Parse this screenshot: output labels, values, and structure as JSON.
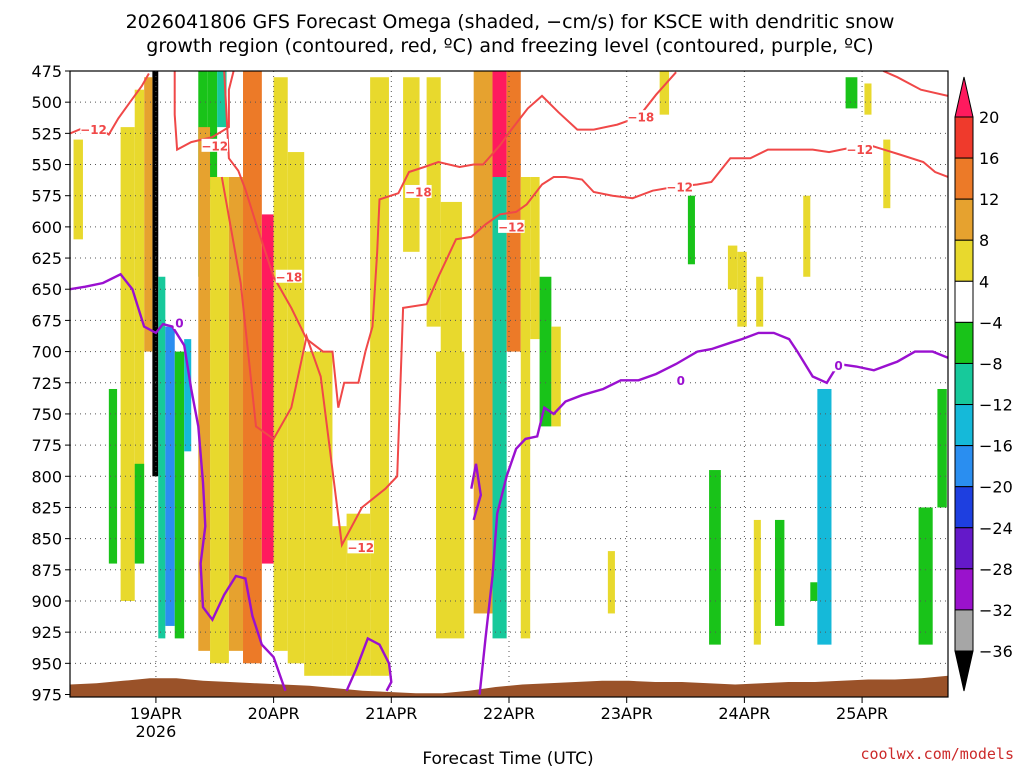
{
  "chart_data": {
    "type": "heatmap",
    "title_lines": [
      "2026041806 GFS Forecast Omega (shaded, −cm/s) for KSCE with dendritic snow",
      "growth region (contoured, red, ºC) and freezing level (contoured, purple, ºC)"
    ],
    "xlabel": "Forecast Time (UTC)",
    "ylabel": "",
    "credit": "coolwx.com/models",
    "x_range_days": [
      -0.73,
      6.73
    ],
    "x_ticks": [
      {
        "day": 0,
        "label": "19APR",
        "sub": "2026"
      },
      {
        "day": 1,
        "label": "20APR",
        "sub": ""
      },
      {
        "day": 2,
        "label": "21APR",
        "sub": ""
      },
      {
        "day": 3,
        "label": "22APR",
        "sub": ""
      },
      {
        "day": 4,
        "label": "23APR",
        "sub": ""
      },
      {
        "day": 5,
        "label": "24APR",
        "sub": ""
      },
      {
        "day": 6,
        "label": "25APR",
        "sub": ""
      }
    ],
    "y_range_hpa": [
      475,
      977
    ],
    "y_ticks": [
      475,
      500,
      525,
      550,
      575,
      600,
      625,
      650,
      675,
      700,
      725,
      750,
      775,
      800,
      825,
      850,
      875,
      900,
      925,
      950,
      975
    ],
    "colorbar": {
      "levels": [
        20,
        16,
        12,
        8,
        4,
        -4,
        -8,
        -12,
        -16,
        -20,
        -24,
        -28,
        -32,
        -36
      ],
      "labels": [
        "20",
        "16",
        "12",
        "8",
        "4",
        "−4",
        "−8",
        "−12",
        "−16",
        "−20",
        "−24",
        "−28",
        "−32",
        "−36"
      ],
      "colors": [
        "#ff1a5e",
        "#ef3a2c",
        "#ec7a28",
        "#e6a22f",
        "#e8d92d",
        "#ffffff",
        "#19c319",
        "#17c99b",
        "#15b9d9",
        "#2a8ef0",
        "#1e3fe0",
        "#6419c9",
        "#9a12cc",
        "#a6a6a6",
        "#000000"
      ]
    },
    "omega_cells": [
      {
        "t0": -0.03,
        "t1": 0.02,
        "p0": 475,
        "p1": 800,
        "v": -40
      },
      {
        "t0": -0.1,
        "t1": -0.03,
        "p0": 480,
        "p1": 700,
        "v": 8
      },
      {
        "t0": -0.18,
        "t1": -0.1,
        "p0": 490,
        "p1": 820,
        "v": 6
      },
      {
        "t0": -0.3,
        "t1": -0.18,
        "p0": 520,
        "p1": 900,
        "v": 5
      },
      {
        "t0": -0.7,
        "t1": -0.62,
        "p0": 530,
        "p1": 610,
        "v": 5
      },
      {
        "t0": -0.4,
        "t1": -0.33,
        "p0": 730,
        "p1": 870,
        "v": -5
      },
      {
        "t0": -0.18,
        "t1": -0.1,
        "p0": 790,
        "p1": 870,
        "v": -6
      },
      {
        "t0": 0.02,
        "t1": 0.08,
        "p0": 640,
        "p1": 930,
        "v": -10
      },
      {
        "t0": 0.08,
        "t1": 0.16,
        "p0": 680,
        "p1": 920,
        "v": -18
      },
      {
        "t0": 0.16,
        "t1": 0.24,
        "p0": 700,
        "p1": 930,
        "v": -8
      },
      {
        "t0": 0.24,
        "t1": 0.3,
        "p0": 690,
        "p1": 780,
        "v": -14
      },
      {
        "t0": 0.36,
        "t1": 0.44,
        "p0": 475,
        "p1": 640,
        "v": -6
      },
      {
        "t0": 0.44,
        "t1": 0.52,
        "p0": 475,
        "p1": 570,
        "v": -8
      },
      {
        "t0": 0.52,
        "t1": 0.6,
        "p0": 475,
        "p1": 520,
        "v": -12
      },
      {
        "t0": 0.36,
        "t1": 0.46,
        "p0": 520,
        "p1": 940,
        "v": 8
      },
      {
        "t0": 0.46,
        "t1": 0.62,
        "p0": 560,
        "p1": 950,
        "v": 6
      },
      {
        "t0": 0.62,
        "t1": 0.74,
        "p0": 560,
        "p1": 940,
        "v": 10
      },
      {
        "t0": 0.74,
        "t1": 0.9,
        "p0": 475,
        "p1": 950,
        "v": 12
      },
      {
        "t0": 0.9,
        "t1": 1.0,
        "p0": 590,
        "p1": 870,
        "v": 20
      },
      {
        "t0": 1.0,
        "t1": 1.12,
        "p0": 480,
        "p1": 940,
        "v": 5
      },
      {
        "t0": 1.12,
        "t1": 1.26,
        "p0": 540,
        "p1": 950,
        "v": 5
      },
      {
        "t0": 1.26,
        "t1": 1.5,
        "p0": 700,
        "p1": 960,
        "v": 5
      },
      {
        "t0": 1.5,
        "t1": 1.62,
        "p0": 840,
        "p1": 960,
        "v": 5
      },
      {
        "t0": 1.62,
        "t1": 1.82,
        "p0": 830,
        "p1": 960,
        "v": 6
      },
      {
        "t0": 1.82,
        "t1": 1.98,
        "p0": 480,
        "p1": 960,
        "v": 5
      },
      {
        "t0": 2.1,
        "t1": 2.24,
        "p0": 480,
        "p1": 620,
        "v": 5
      },
      {
        "t0": 2.3,
        "t1": 2.42,
        "p0": 480,
        "p1": 680,
        "v": 5
      },
      {
        "t0": 2.42,
        "t1": 2.6,
        "p0": 580,
        "p1": 700,
        "v": 5
      },
      {
        "t0": 2.38,
        "t1": 2.62,
        "p0": 700,
        "p1": 930,
        "v": 6
      },
      {
        "t0": 2.7,
        "t1": 2.86,
        "p0": 475,
        "p1": 910,
        "v": 8
      },
      {
        "t0": 2.86,
        "t1": 2.98,
        "p0": 475,
        "p1": 560,
        "v": 20
      },
      {
        "t0": 2.86,
        "t1": 2.98,
        "p0": 560,
        "p1": 930,
        "v": -10
      },
      {
        "t0": 2.98,
        "t1": 3.1,
        "p0": 475,
        "p1": 700,
        "v": 14
      },
      {
        "t0": 3.1,
        "t1": 3.18,
        "p0": 560,
        "p1": 930,
        "v": 5
      },
      {
        "t0": 3.18,
        "t1": 3.26,
        "p0": 560,
        "p1": 690,
        "v": 5
      },
      {
        "t0": 3.26,
        "t1": 3.36,
        "p0": 640,
        "p1": 760,
        "v": -6
      },
      {
        "t0": 3.36,
        "t1": 3.44,
        "p0": 680,
        "p1": 760,
        "v": 5
      },
      {
        "t0": 3.84,
        "t1": 3.9,
        "p0": 860,
        "p1": 910,
        "v": 5
      },
      {
        "t0": 4.28,
        "t1": 4.36,
        "p0": 475,
        "p1": 510,
        "v": 5
      },
      {
        "t0": 4.52,
        "t1": 4.58,
        "p0": 575,
        "p1": 630,
        "v": -8
      },
      {
        "t0": 4.7,
        "t1": 4.8,
        "p0": 795,
        "p1": 935,
        "v": -8
      },
      {
        "t0": 4.86,
        "t1": 4.94,
        "p0": 615,
        "p1": 650,
        "v": 5
      },
      {
        "t0": 4.94,
        "t1": 5.02,
        "p0": 620,
        "p1": 680,
        "v": 5
      },
      {
        "t0": 5.08,
        "t1": 5.14,
        "p0": 835,
        "p1": 935,
        "v": 5
      },
      {
        "t0": 5.1,
        "t1": 5.16,
        "p0": 640,
        "p1": 680,
        "v": 5
      },
      {
        "t0": 5.26,
        "t1": 5.34,
        "p0": 835,
        "p1": 920,
        "v": -8
      },
      {
        "t0": 5.5,
        "t1": 5.56,
        "p0": 575,
        "p1": 640,
        "v": 5
      },
      {
        "t0": 5.56,
        "t1": 5.62,
        "p0": 885,
        "p1": 900,
        "v": -8
      },
      {
        "t0": 5.62,
        "t1": 5.74,
        "p0": 730,
        "p1": 935,
        "v": -14
      },
      {
        "t0": 5.86,
        "t1": 5.96,
        "p0": 480,
        "p1": 505,
        "v": -8
      },
      {
        "t0": 6.02,
        "t1": 6.08,
        "p0": 485,
        "p1": 510,
        "v": 5
      },
      {
        "t0": 6.18,
        "t1": 6.24,
        "p0": 530,
        "p1": 585,
        "v": 5
      },
      {
        "t0": 6.48,
        "t1": 6.6,
        "p0": 825,
        "p1": 935,
        "v": -8
      },
      {
        "t0": 6.64,
        "t1": 6.72,
        "p0": 730,
        "p1": 825,
        "v": -8
      }
    ],
    "red_contours": [
      {
        "points": [
          [
            -0.73,
            525
          ],
          [
            -0.6,
            520
          ],
          [
            -0.52,
            518
          ],
          [
            -0.4,
            526
          ],
          [
            -0.32,
            513
          ],
          [
            -0.22,
            500
          ],
          [
            -0.12,
            487
          ],
          [
            -0.06,
            477
          ]
        ]
      },
      {
        "points": [
          [
            0.16,
            475
          ],
          [
            0.16,
            510
          ],
          [
            0.18,
            538
          ],
          [
            0.3,
            532
          ],
          [
            0.48,
            528
          ],
          [
            0.62,
            520
          ],
          [
            0.62,
            490
          ],
          [
            0.66,
            475
          ]
        ]
      },
      {
        "points": [
          [
            0.58,
            475
          ],
          [
            0.62,
            545
          ],
          [
            0.7,
            555
          ],
          [
            0.76,
            570
          ],
          [
            0.86,
            600
          ],
          [
            1.0,
            640
          ],
          [
            1.15,
            665
          ],
          [
            1.28,
            690
          ],
          [
            1.42,
            700
          ],
          [
            1.5,
            700
          ],
          [
            1.55,
            745
          ],
          [
            1.6,
            725
          ],
          [
            1.72,
            725
          ],
          [
            1.78,
            700
          ],
          [
            1.84,
            680
          ],
          [
            1.88,
            620
          ],
          [
            1.9,
            578
          ],
          [
            2.06,
            573
          ],
          [
            2.15,
            556
          ],
          [
            2.28,
            552
          ],
          [
            2.4,
            548
          ],
          [
            2.58,
            552
          ],
          [
            2.7,
            550
          ],
          [
            2.78,
            550
          ],
          [
            2.92,
            535
          ],
          [
            3.02,
            522
          ],
          [
            3.16,
            505
          ],
          [
            3.28,
            495
          ],
          [
            3.42,
            508
          ],
          [
            3.58,
            522
          ],
          [
            3.72,
            522
          ],
          [
            3.92,
            518
          ],
          [
            4.1,
            512
          ],
          [
            4.25,
            494
          ],
          [
            4.42,
            476
          ]
        ]
      },
      {
        "points": [
          [
            0.56,
            560
          ],
          [
            0.72,
            645
          ],
          [
            0.85,
            760
          ],
          [
            1.0,
            770
          ],
          [
            1.15,
            745
          ],
          [
            1.28,
            688
          ],
          [
            1.4,
            720
          ],
          [
            1.58,
            855
          ],
          [
            1.75,
            825
          ],
          [
            1.95,
            810
          ],
          [
            2.05,
            800
          ],
          [
            2.1,
            665
          ],
          [
            2.3,
            662
          ],
          [
            2.4,
            640
          ],
          [
            2.55,
            610
          ],
          [
            2.68,
            608
          ],
          [
            2.8,
            598
          ],
          [
            2.92,
            590
          ],
          [
            3.06,
            588
          ],
          [
            3.15,
            582
          ],
          [
            3.28,
            566
          ],
          [
            3.38,
            560
          ],
          [
            3.48,
            560
          ],
          [
            3.62,
            562
          ],
          [
            3.72,
            572
          ],
          [
            3.88,
            575
          ],
          [
            4.05,
            577
          ],
          [
            4.22,
            571
          ],
          [
            4.4,
            568
          ],
          [
            4.6,
            566
          ],
          [
            4.72,
            564
          ],
          [
            4.88,
            545
          ],
          [
            5.05,
            545
          ],
          [
            5.2,
            538
          ],
          [
            5.4,
            538
          ],
          [
            5.58,
            538
          ],
          [
            5.72,
            540
          ],
          [
            5.88,
            537
          ],
          [
            6.08,
            535
          ],
          [
            6.32,
            542
          ],
          [
            6.52,
            548
          ],
          [
            6.62,
            556
          ],
          [
            6.73,
            560
          ]
        ]
      },
      {
        "points": [
          [
            6.18,
            475
          ],
          [
            6.3,
            480
          ],
          [
            6.5,
            490
          ],
          [
            6.73,
            495
          ]
        ]
      }
    ],
    "red_labels": [
      {
        "t": -0.53,
        "p": 522,
        "text": "−12"
      },
      {
        "t": 0.5,
        "p": 535,
        "text": "−12"
      },
      {
        "t": 1.13,
        "p": 640,
        "text": "−18"
      },
      {
        "t": 1.74,
        "p": 857,
        "text": "−12"
      },
      {
        "t": 2.23,
        "p": 572,
        "text": "−18"
      },
      {
        "t": 3.02,
        "p": 600,
        "text": "−12"
      },
      {
        "t": 4.12,
        "p": 512,
        "text": "−18"
      },
      {
        "t": 4.45,
        "p": 568,
        "text": "−12"
      },
      {
        "t": 5.98,
        "p": 538,
        "text": "−12"
      }
    ],
    "purple_contours": [
      {
        "points": [
          [
            -0.73,
            650
          ],
          [
            -0.6,
            648
          ],
          [
            -0.45,
            645
          ],
          [
            -0.3,
            638
          ],
          [
            -0.2,
            650
          ],
          [
            -0.1,
            680
          ],
          [
            0.0,
            685
          ],
          [
            0.06,
            678
          ],
          [
            0.14,
            680
          ],
          [
            0.24,
            695
          ],
          [
            0.3,
            730
          ],
          [
            0.36,
            760
          ],
          [
            0.4,
            805
          ],
          [
            0.42,
            840
          ],
          [
            0.38,
            870
          ],
          [
            0.4,
            905
          ],
          [
            0.48,
            915
          ],
          [
            0.58,
            895
          ],
          [
            0.68,
            880
          ],
          [
            0.76,
            882
          ],
          [
            0.82,
            912
          ],
          [
            0.9,
            935
          ],
          [
            1.0,
            945
          ],
          [
            1.1,
            972
          ]
        ]
      },
      {
        "points": [
          [
            1.62,
            972
          ],
          [
            1.7,
            955
          ],
          [
            1.8,
            930
          ],
          [
            1.9,
            935
          ],
          [
            1.98,
            950
          ],
          [
            2.0,
            965
          ],
          [
            1.96,
            972
          ]
        ]
      },
      {
        "points": [
          [
            2.68,
            810
          ],
          [
            2.72,
            790
          ],
          [
            2.76,
            815
          ],
          [
            2.7,
            835
          ]
        ]
      },
      {
        "points": [
          [
            2.75,
            975
          ],
          [
            2.8,
            930
          ],
          [
            2.86,
            880
          ],
          [
            2.9,
            830
          ],
          [
            2.98,
            800
          ],
          [
            3.06,
            778
          ],
          [
            3.14,
            770
          ],
          [
            3.24,
            768
          ],
          [
            3.3,
            745
          ],
          [
            3.38,
            750
          ],
          [
            3.48,
            740
          ],
          [
            3.62,
            735
          ],
          [
            3.8,
            730
          ],
          [
            3.95,
            723
          ],
          [
            4.1,
            723
          ],
          [
            4.25,
            718
          ],
          [
            4.42,
            710
          ],
          [
            4.6,
            700
          ],
          [
            4.72,
            698
          ],
          [
            4.88,
            693
          ],
          [
            4.98,
            690
          ],
          [
            5.12,
            685
          ],
          [
            5.25,
            685
          ],
          [
            5.38,
            690
          ],
          [
            5.45,
            700
          ],
          [
            5.58,
            720
          ],
          [
            5.7,
            725
          ],
          [
            5.8,
            710
          ],
          [
            5.95,
            712
          ],
          [
            6.1,
            715
          ],
          [
            6.3,
            708
          ],
          [
            6.45,
            700
          ],
          [
            6.6,
            700
          ],
          [
            6.73,
            705
          ]
        ]
      }
    ],
    "purple_labels": [
      {
        "t": 0.2,
        "p": 677,
        "text": "0"
      },
      {
        "t": 4.46,
        "p": 723,
        "text": "0"
      },
      {
        "t": 5.8,
        "p": 711,
        "text": "0"
      }
    ],
    "terrain_color": "#9a5229"
  }
}
